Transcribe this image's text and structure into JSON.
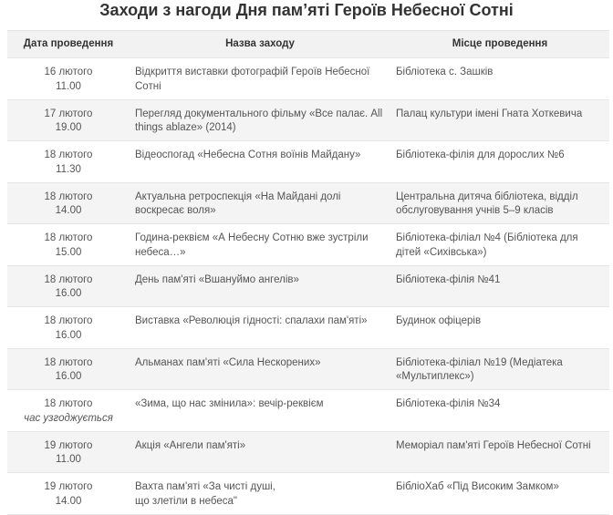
{
  "title": "Заходи з нагоди Дня пам’яті Героїв Небесної Сотні",
  "columns": [
    "Дата проведення",
    "Назва заходу",
    "Місце проведення"
  ],
  "rows": [
    {
      "date": "16 лютого",
      "time": "11.00",
      "name": "Відкриття виставки фотографій Героїв Небесної Сотні",
      "place": "Бібліотека с. Зашків"
    },
    {
      "date": "17 лютого",
      "time": "19.00",
      "name": "Перегляд документального фільму «Все палає. All things ablaze» (2014)",
      "place": "Палац культури імені Гната Хоткевича"
    },
    {
      "date": "18 лютого",
      "time": "11.30",
      "name": "Відеоспогад «Небесна Сотня воїнів Майдану»",
      "place": "Бібліотека-філія для дорослих №6"
    },
    {
      "date": "18 лютого",
      "time": "14.00",
      "name": "Актуальна ретроспекція «На Майдані долі воскресає воля»",
      "place": "Центральна дитяча бібліотека, відділ обслуговування учнів 5–9 класів"
    },
    {
      "date": "18 лютого",
      "time": "15.00",
      "name": "Година-реквієм «А Небесну Сотню вже зустріли небеса…»",
      "place": "Бібліотека-філіал №4 (Бібліотека для дітей «Сихівська»)"
    },
    {
      "date": "18 лютого",
      "time": "16.00",
      "name": "День пам'яті «Вшануймо ангелів»",
      "place": "Бібліотека-філія №41"
    },
    {
      "date": "18 лютого",
      "time": "16.00",
      "name": "Виставка «Революція гідності: спалахи пам'яті»",
      "place": "Будинок офіцерів"
    },
    {
      "date": "18 лютого",
      "time": "16.00",
      "name": "Альманах пам'яті «Сила Нескорених»",
      "place": "Бібліотека-філіал №19 (Медіатека «Мультиплекс»)"
    },
    {
      "date": "18 лютого",
      "time": "час узгоджується",
      "name": "«Зима, що нас змінила»: вечір-реквієм",
      "place": "Бібліотека-філія №34"
    },
    {
      "date": "19 лютого",
      "time": "11.00",
      "name": "Акція «Ангели пам'яті»",
      "place": "Меморіал пам'яті Героїв Небесної Сотні"
    },
    {
      "date": "19 лютого",
      "time": "14.00",
      "name": "Вахта пам'яті «За чисті душі,\nщо злетіли в небеса\"",
      "place": "БібліоХаб «Під Високим Замком»"
    }
  ]
}
